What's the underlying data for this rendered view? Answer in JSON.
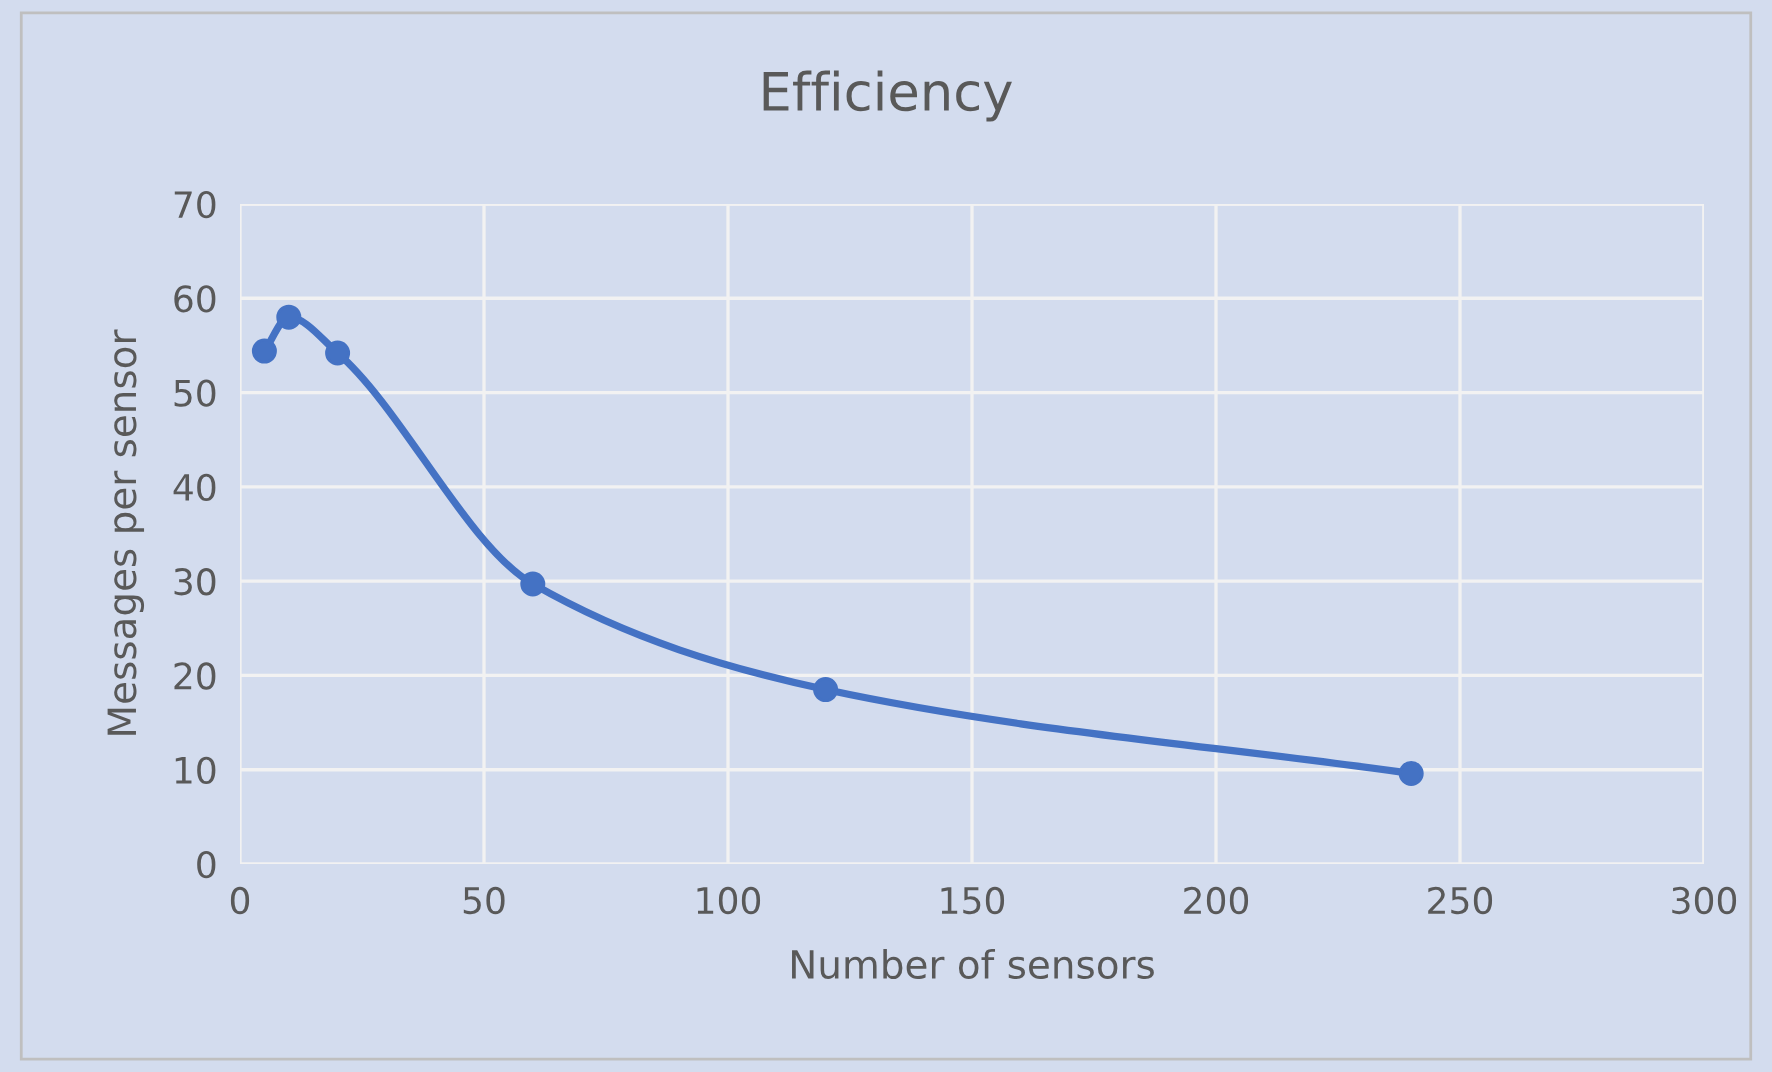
{
  "chart_data": {
    "type": "line",
    "title": "Efficiency",
    "xlabel": "Number of sensors",
    "ylabel": "Messages per sensor",
    "x": [
      5,
      10,
      20,
      60,
      120,
      240
    ],
    "series": [
      {
        "color": "#4472c4",
        "values": [
          54.4,
          58,
          54.2,
          29.7,
          18.5,
          9.6
        ]
      }
    ],
    "xlim": [
      0,
      300
    ],
    "xticks": [
      0,
      50,
      100,
      150,
      200,
      250,
      300
    ],
    "ylim": [
      0,
      70
    ],
    "yticks": [
      0,
      10,
      20,
      30,
      40,
      50,
      60,
      70
    ],
    "grid": true,
    "marker": "circle",
    "line_style": "solid",
    "legend": false
  }
}
